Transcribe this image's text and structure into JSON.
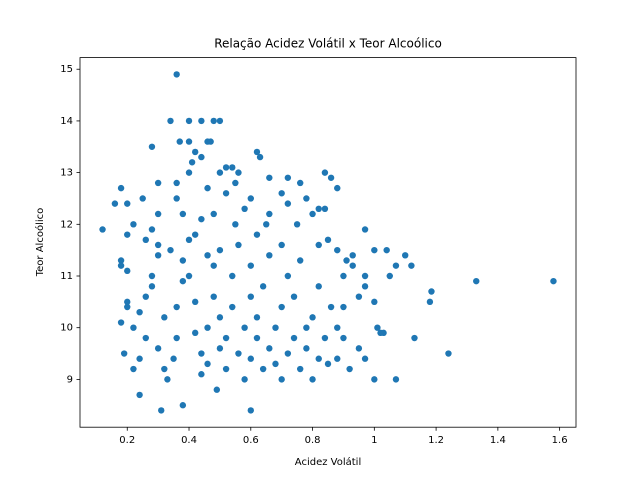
{
  "chart_data": {
    "type": "scatter",
    "title": "Relação Acidez Volátil x Teor Alcoólico",
    "x_label": "Acidez Volátil",
    "y_label": "Teor Alcoólico",
    "color": "#1f77b4",
    "xlim": [
      0.047,
      1.653
    ],
    "ylim": [
      8.075,
      15.225
    ],
    "xticks": [
      0.2,
      0.4,
      0.6,
      0.8,
      1.0,
      1.2,
      1.4,
      1.6
    ],
    "yticks": [
      9,
      10,
      11,
      12,
      13,
      14,
      15
    ],
    "x": [
      0.12,
      0.36,
      1.58,
      1.33,
      1.24,
      1.185,
      1.18,
      1.13,
      1.07,
      1.0,
      0.31,
      0.6,
      0.38,
      0.24,
      0.49,
      0.34,
      0.4,
      0.44,
      0.48,
      0.5,
      0.37,
      0.4,
      0.46,
      0.47,
      0.28,
      0.42,
      0.62,
      0.63,
      0.44,
      0.41,
      0.52,
      0.54,
      0.56,
      0.5,
      0.4,
      0.84,
      0.86,
      0.66,
      0.72,
      0.76,
      0.88,
      0.36,
      0.3,
      0.18,
      0.46,
      0.55,
      0.78,
      0.72,
      0.6,
      0.25,
      0.2,
      0.16,
      0.82,
      0.84,
      0.8,
      0.3,
      0.38,
      0.48,
      0.55,
      0.65,
      0.75,
      0.97,
      0.22,
      0.2,
      0.85,
      0.82,
      0.93,
      1.0,
      1.04,
      1.1,
      1.12,
      1.07,
      1.05,
      0.97,
      0.93,
      0.91,
      0.88,
      0.9,
      0.97,
      1.0,
      0.95,
      0.9,
      1.01,
      1.03,
      1.02,
      0.95,
      0.92,
      0.97,
      0.88,
      0.82,
      0.85,
      0.18,
      0.18,
      0.2,
      0.18,
      0.22,
      0.2,
      0.2,
      0.19,
      0.22,
      0.24,
      0.26,
      0.24,
      0.26,
      0.28,
      0.28,
      0.3,
      0.26,
      0.28,
      0.3,
      0.32,
      0.3,
      0.32,
      0.33,
      0.35,
      0.36,
      0.36,
      0.38,
      0.38,
      0.4,
      0.4,
      0.42,
      0.42,
      0.44,
      0.44,
      0.46,
      0.46,
      0.48,
      0.48,
      0.5,
      0.5,
      0.5,
      0.52,
      0.52,
      0.54,
      0.54,
      0.56,
      0.56,
      0.58,
      0.58,
      0.6,
      0.6,
      0.6,
      0.62,
      0.62,
      0.64,
      0.64,
      0.66,
      0.66,
      0.68,
      0.68,
      0.7,
      0.7,
      0.72,
      0.72,
      0.74,
      0.74,
      0.76,
      0.76,
      0.78,
      0.78,
      0.8,
      0.8,
      0.82,
      0.84,
      0.86,
      0.88,
      0.9,
      0.62,
      0.58,
      0.52,
      0.44,
      0.34,
      0.36,
      0.42,
      0.46,
      0.7,
      0.66,
      0.7
    ],
    "y": [
      11.9,
      14.9,
      10.9,
      10.9,
      9.5,
      10.7,
      10.5,
      9.8,
      9.0,
      9.0,
      8.4,
      8.4,
      8.5,
      8.7,
      8.8,
      14.0,
      14.0,
      14.0,
      14.0,
      14.0,
      13.6,
      13.6,
      13.6,
      13.6,
      13.5,
      13.4,
      13.4,
      13.3,
      13.3,
      13.2,
      13.1,
      13.1,
      13.0,
      13.0,
      13.0,
      13.0,
      12.9,
      12.9,
      12.9,
      12.8,
      12.7,
      12.8,
      12.8,
      12.7,
      12.7,
      12.8,
      12.5,
      12.4,
      12.5,
      12.5,
      12.4,
      12.4,
      12.3,
      12.3,
      12.2,
      12.2,
      12.2,
      12.2,
      12.0,
      12.0,
      12.0,
      11.9,
      12.0,
      11.8,
      11.7,
      11.6,
      11.4,
      11.5,
      11.5,
      11.4,
      11.2,
      11.2,
      11.0,
      11.0,
      11.2,
      11.3,
      11.5,
      11.0,
      10.8,
      10.5,
      10.6,
      10.4,
      10.0,
      9.9,
      9.9,
      9.6,
      9.2,
      9.4,
      9.4,
      9.4,
      9.3,
      11.3,
      11.2,
      11.1,
      10.1,
      10.0,
      10.5,
      10.4,
      9.5,
      9.2,
      9.4,
      9.8,
      10.3,
      10.6,
      10.8,
      11.0,
      11.4,
      11.7,
      11.9,
      11.6,
      10.2,
      9.6,
      9.2,
      9.0,
      9.4,
      9.8,
      10.4,
      10.9,
      11.3,
      11.7,
      11.0,
      10.5,
      9.9,
      9.5,
      9.1,
      9.3,
      10.0,
      10.6,
      11.2,
      11.5,
      10.2,
      9.6,
      9.2,
      9.8,
      10.4,
      11.0,
      11.6,
      9.5,
      9.0,
      10.0,
      10.6,
      11.2,
      9.4,
      9.8,
      10.2,
      9.2,
      10.8,
      11.4,
      9.6,
      10.0,
      9.3,
      9.0,
      10.4,
      11.0,
      9.5,
      9.8,
      10.6,
      9.2,
      11.3,
      10.0,
      9.6,
      10.2,
      9.0,
      10.8,
      9.8,
      10.4,
      10.0,
      9.8,
      11.8,
      12.3,
      12.6,
      12.1,
      11.5,
      12.5,
      11.8,
      11.4,
      11.6,
      12.2,
      12.6
    ]
  }
}
